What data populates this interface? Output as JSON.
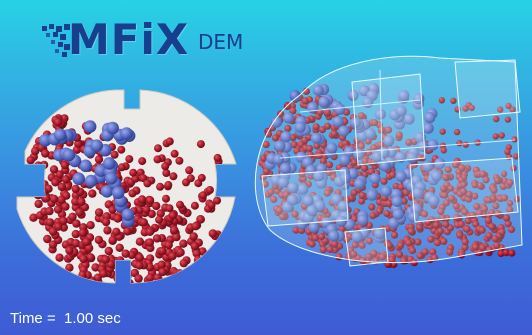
{
  "logo": {
    "wordmark": "MFiX",
    "suffix": "DEM",
    "color": "#183f8e"
  },
  "time_label": {
    "prefix": "Time =",
    "value": "1.00",
    "unit": "sec"
  },
  "colors": {
    "background_top": "#28d2e6",
    "background_bottom": "#3f5bd4",
    "drum_face": "#ecebe7",
    "small_particle": "#a8192a",
    "large_particle": "#5b6ec7",
    "translucent_shell": "#c8eaf2"
  }
}
